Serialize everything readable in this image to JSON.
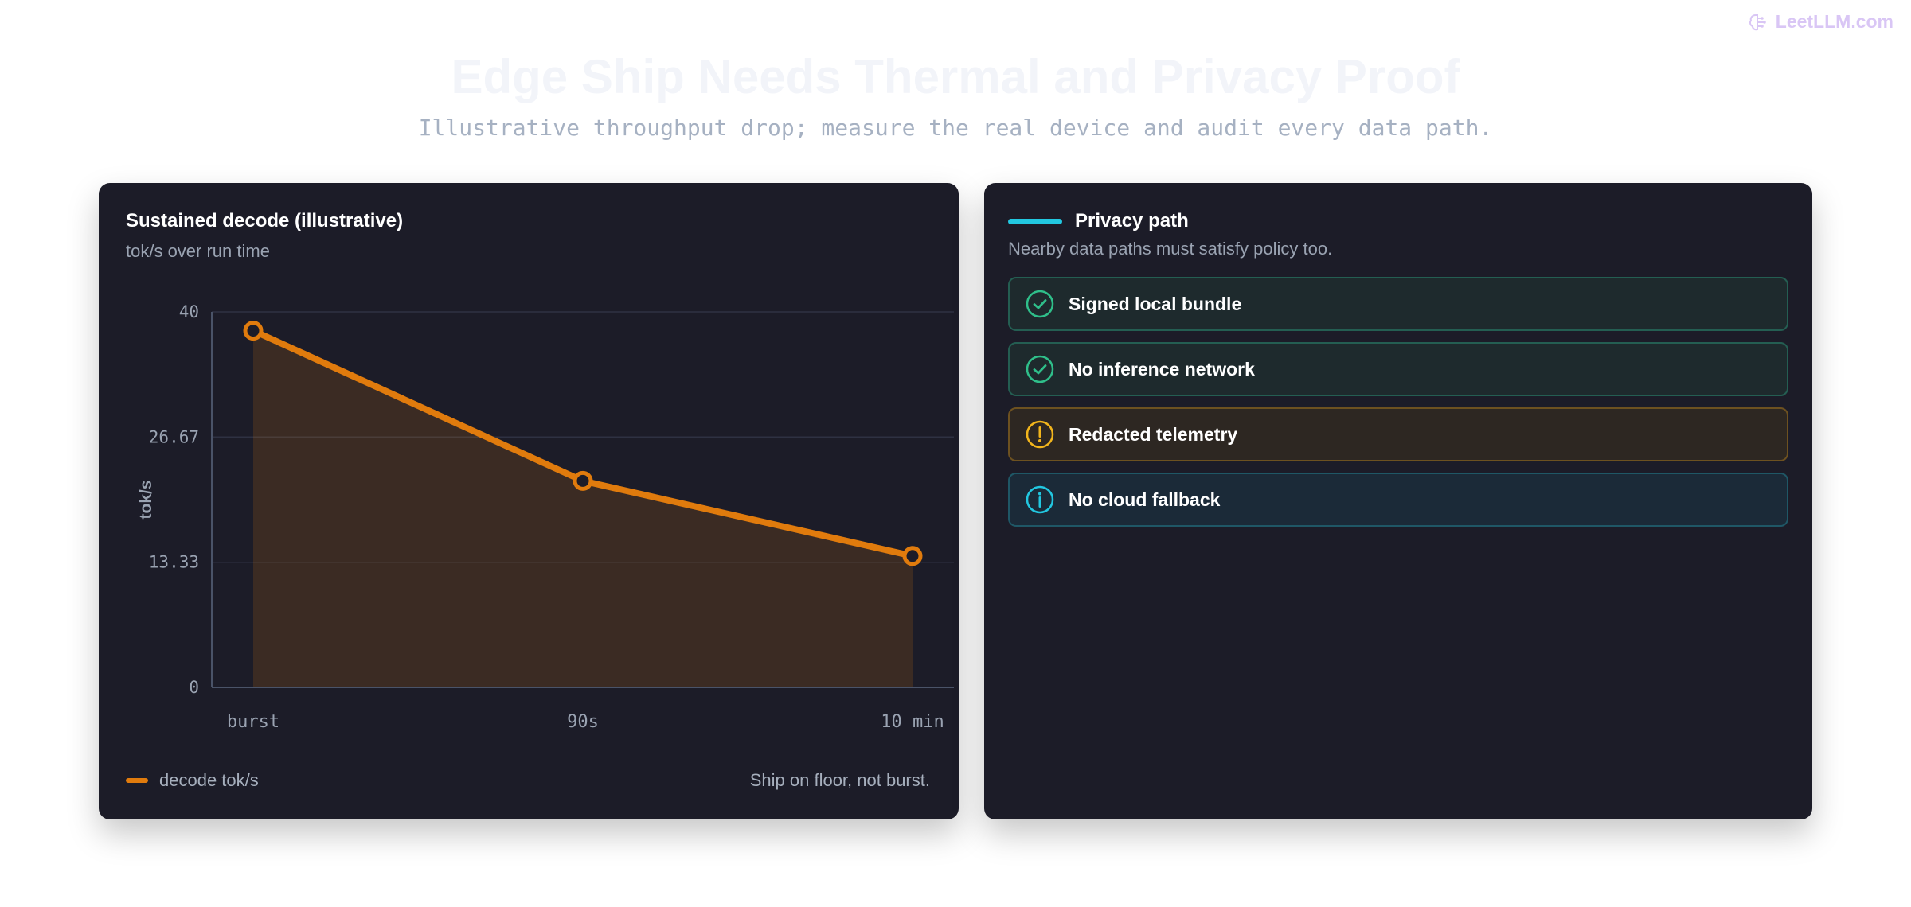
{
  "brand": {
    "label": "LeetLLM.com"
  },
  "page": {
    "title": "Edge Ship Needs Thermal and Privacy Proof",
    "subtitle": "Illustrative throughput drop; measure the real device and audit every data path."
  },
  "chart_data": {
    "type": "line",
    "title": "Sustained decode (illustrative)",
    "subtitle": "tok/s over run time",
    "categories": [
      "burst",
      "90s",
      "10 min"
    ],
    "series": [
      {
        "name": "decode tok/s",
        "values": [
          38,
          22,
          14
        ],
        "color": "#e07b0d"
      }
    ],
    "ylabel": "tok/s",
    "xlabel": "",
    "ylim": [
      0,
      40
    ],
    "yticks": [
      "0",
      "13.33",
      "26.67",
      "40"
    ],
    "yticks_values": [
      0,
      13.33,
      26.67,
      40
    ],
    "grid": true,
    "area_fill": true,
    "legend": "bottom-left",
    "note": "Ship on floor, not burst."
  },
  "privacy": {
    "title": "Privacy path",
    "subtitle": "Nearby data paths must satisfy policy too.",
    "accent": "#22c7e0",
    "items": [
      {
        "label": "Signed local bundle",
        "status": "ok",
        "icon": "check-circle-icon"
      },
      {
        "label": "No inference network",
        "status": "ok",
        "icon": "check-circle-icon"
      },
      {
        "label": "Redacted telemetry",
        "status": "warn",
        "icon": "exclamation-circle-icon"
      },
      {
        "label": "No cloud fallback",
        "status": "info",
        "icon": "info-circle-icon"
      }
    ]
  },
  "colors": {
    "ok": "#2fbf8a",
    "warn": "#f2b51c",
    "info": "#22c7e0",
    "line": "#e07b0d"
  }
}
